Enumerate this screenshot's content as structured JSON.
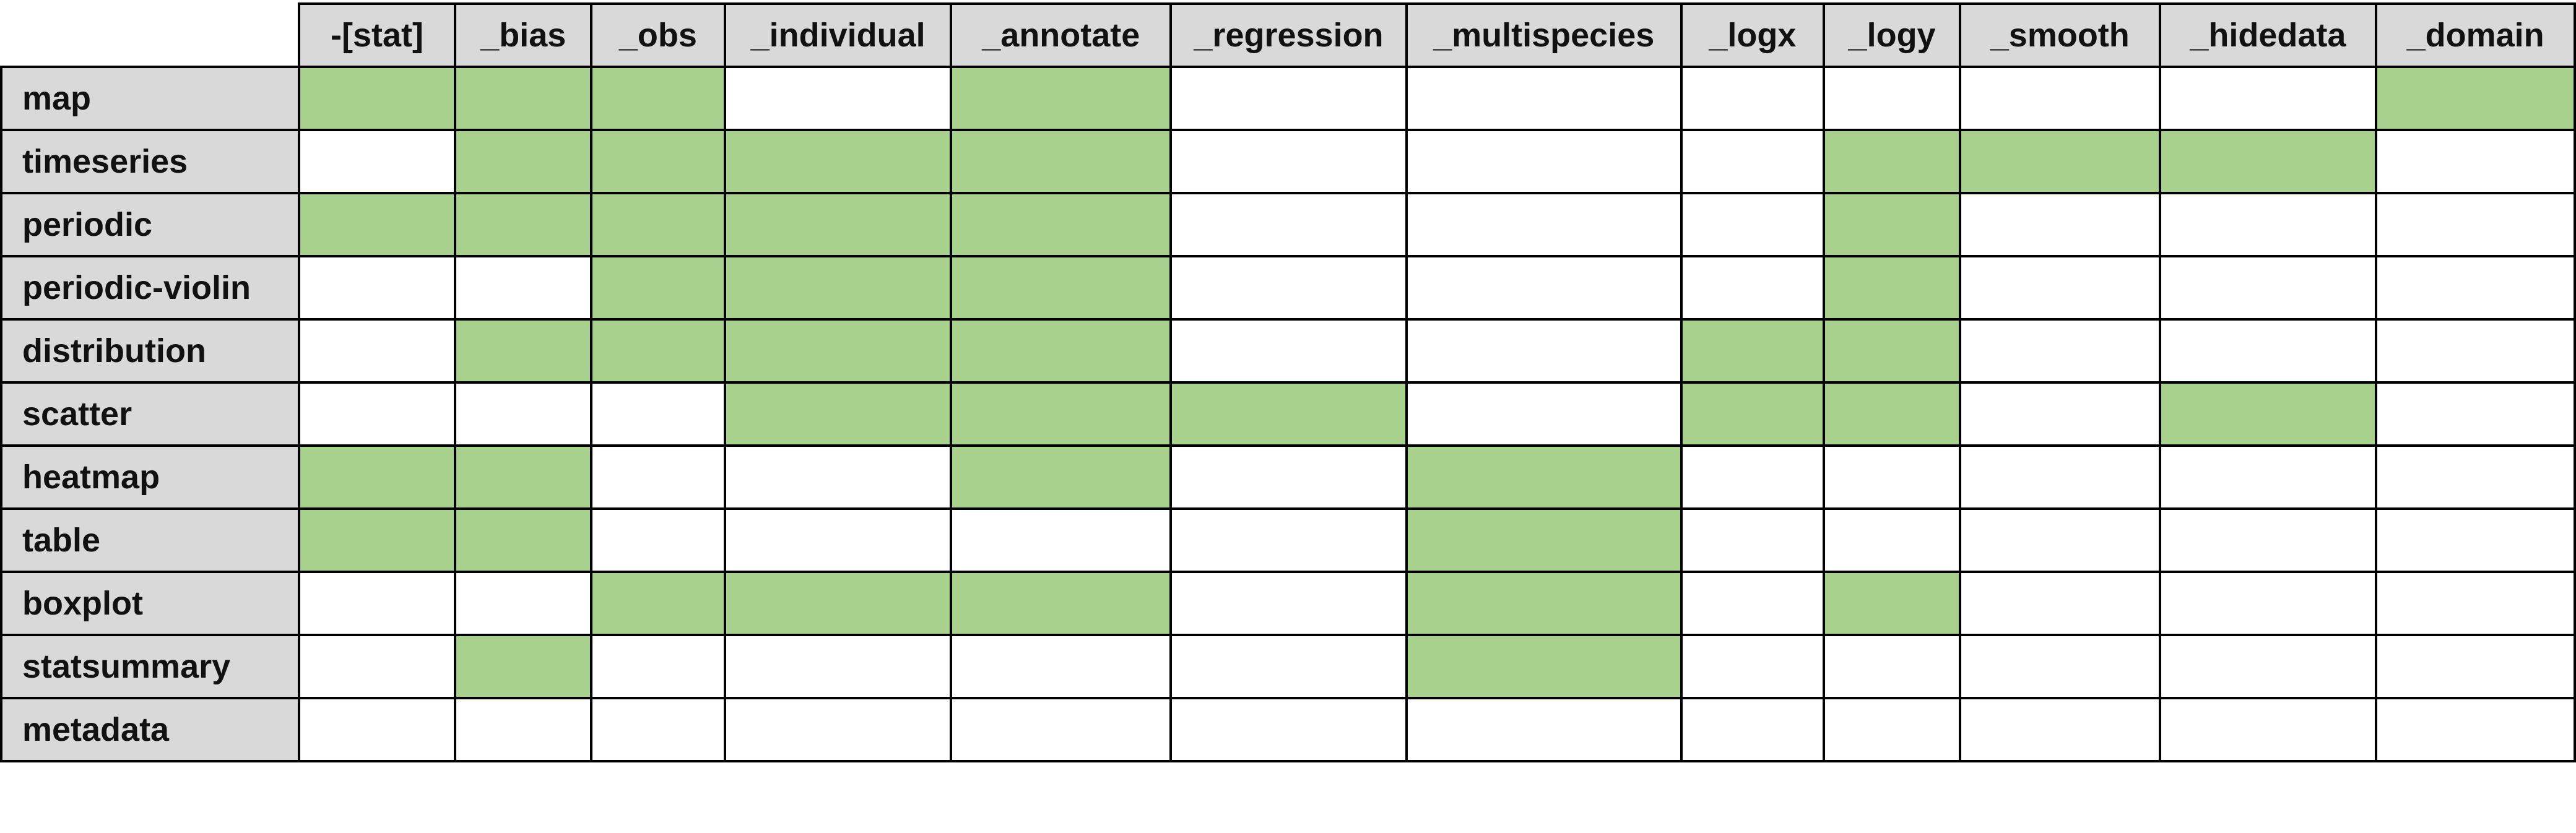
{
  "table": {
    "columns": [
      "-[stat]",
      "_bias",
      "_obs",
      "_individual",
      "_annotate",
      "_regression",
      "_multispecies",
      "_logx",
      "_logy",
      "_smooth",
      "_hidedata",
      "_domain"
    ],
    "rows": [
      {
        "label": "map",
        "flags": [
          1,
          1,
          1,
          0,
          1,
          0,
          0,
          0,
          0,
          0,
          0,
          1
        ]
      },
      {
        "label": "timeseries",
        "flags": [
          0,
          1,
          1,
          1,
          1,
          0,
          0,
          0,
          1,
          1,
          1,
          0
        ]
      },
      {
        "label": "periodic",
        "flags": [
          1,
          1,
          1,
          1,
          1,
          0,
          0,
          0,
          1,
          0,
          0,
          0
        ]
      },
      {
        "label": "periodic-violin",
        "flags": [
          0,
          0,
          1,
          1,
          1,
          0,
          0,
          0,
          1,
          0,
          0,
          0
        ]
      },
      {
        "label": "distribution",
        "flags": [
          0,
          1,
          1,
          1,
          1,
          0,
          0,
          1,
          1,
          0,
          0,
          0
        ]
      },
      {
        "label": "scatter",
        "flags": [
          0,
          0,
          0,
          1,
          1,
          1,
          0,
          1,
          1,
          0,
          1,
          0
        ]
      },
      {
        "label": "heatmap",
        "flags": [
          1,
          1,
          0,
          0,
          1,
          0,
          1,
          0,
          0,
          0,
          0,
          0
        ]
      },
      {
        "label": "table",
        "flags": [
          1,
          1,
          0,
          0,
          0,
          0,
          1,
          0,
          0,
          0,
          0,
          0
        ]
      },
      {
        "label": "boxplot",
        "flags": [
          0,
          0,
          1,
          1,
          1,
          0,
          1,
          0,
          1,
          0,
          0,
          0
        ]
      },
      {
        "label": "statsummary",
        "flags": [
          0,
          1,
          0,
          0,
          0,
          0,
          1,
          0,
          0,
          0,
          0,
          0
        ]
      },
      {
        "label": "metadata",
        "flags": [
          0,
          0,
          0,
          0,
          0,
          0,
          0,
          0,
          0,
          0,
          0,
          0
        ]
      }
    ]
  },
  "colors": {
    "supported": "#a9d18e",
    "header_bg": "#d9d9d9",
    "empty": "#ffffff",
    "border": "#000000"
  }
}
